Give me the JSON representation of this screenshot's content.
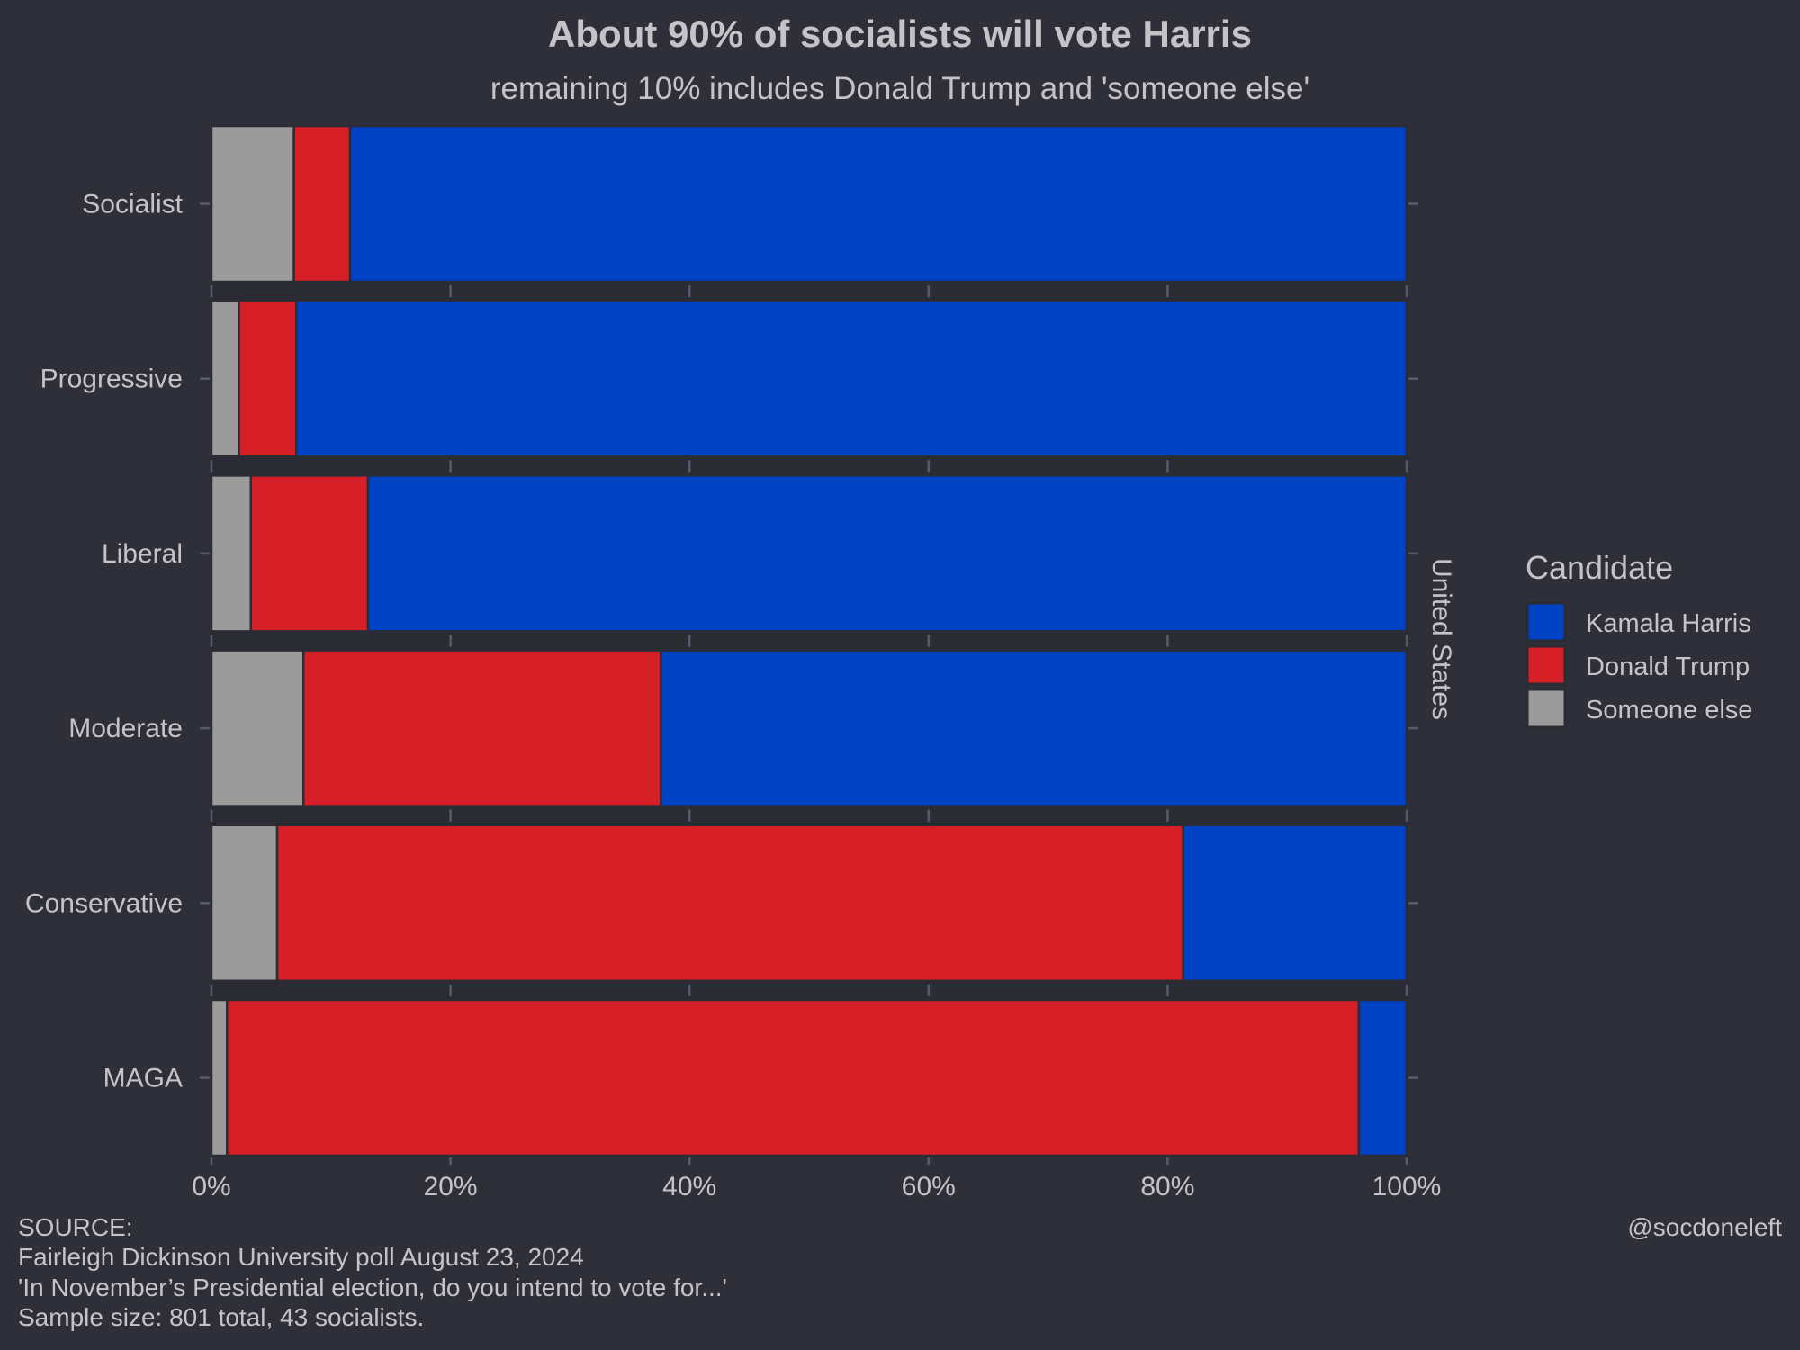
{
  "chart_data": {
    "type": "bar",
    "orientation": "horizontal",
    "stacked": true,
    "normalized": true,
    "title": "About 90% of socialists will vote Harris",
    "subtitle": "remaining 10% includes Donald Trump and 'someone else'",
    "xlabel": "",
    "ylabel": "",
    "facet_label": "United States",
    "xlim": [
      0,
      100
    ],
    "x_ticks": [
      "0%",
      "20%",
      "40%",
      "60%",
      "80%",
      "100%"
    ],
    "x_tick_values": [
      0,
      20,
      40,
      60,
      80,
      100
    ],
    "grid": false,
    "categories": [
      "Socialist",
      "Progressive",
      "Liberal",
      "Moderate",
      "Conservative",
      "MAGA"
    ],
    "series": [
      {
        "name": "Someone else",
        "color": "#9b9b9b",
        "values": [
          6.9,
          2.3,
          3.3,
          7.7,
          5.5,
          1.3
        ]
      },
      {
        "name": "Donald Trump",
        "color": "#d61f27",
        "values": [
          4.7,
          4.8,
          9.8,
          29.9,
          75.8,
          94.7
        ]
      },
      {
        "name": "Kamala Harris",
        "color": "#0042c4",
        "values": [
          88.4,
          92.9,
          86.9,
          62.4,
          18.7,
          4.0
        ]
      }
    ],
    "legend": {
      "title": "Candidate",
      "position": "right",
      "entries": [
        {
          "label": "Kamala Harris",
          "color": "#0042c4"
        },
        {
          "label": "Donald Trump",
          "color": "#d61f27"
        },
        {
          "label": "Someone else",
          "color": "#9b9b9b"
        }
      ]
    }
  },
  "caption": {
    "lines": [
      "SOURCE:",
      "Fairleigh Dickinson University poll August 23, 2024",
      "'In November’s Presidential election, do you intend to vote for...'",
      "Sample size: 801 total, 43 socialists."
    ],
    "credit": "@socdoneleft"
  },
  "colors": {
    "background": "#2f2f39",
    "text": "#c4c4c8",
    "harris": "#0042c4",
    "trump": "#d61f27",
    "someone_else": "#9b9b9b"
  }
}
